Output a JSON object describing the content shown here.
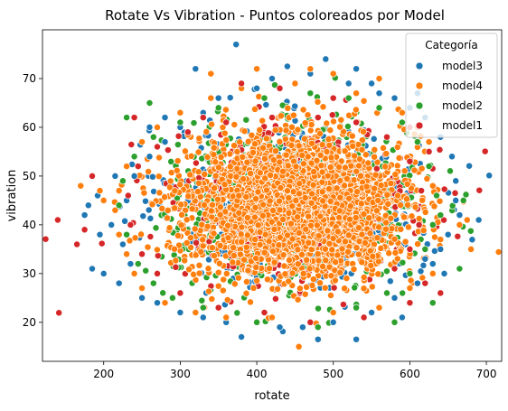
{
  "chart_data": {
    "type": "scatter",
    "title": "Rotate Vs Vibration - Puntos coloreados por Model",
    "xlabel": "rotate",
    "ylabel": "vibration",
    "xlim": [
      120,
      720
    ],
    "ylim": [
      12,
      80
    ],
    "xticks": [
      200,
      300,
      400,
      500,
      600,
      700
    ],
    "yticks": [
      20,
      30,
      40,
      50,
      60,
      70
    ],
    "grid": false,
    "legend": {
      "title": "Categoría",
      "placement": "top-right",
      "entries": [
        "model3",
        "model4",
        "model2",
        "model1"
      ]
    },
    "distribution": {
      "rotate_center": 450,
      "rotate_std": 75,
      "vibration_center": 44,
      "vibration_std": 7.5
    },
    "series": [
      {
        "name": "model3",
        "color": "#1f77b4",
        "points": [
          [
            373,
            77
          ],
          [
            490,
            74
          ],
          [
            440,
            72.5
          ],
          [
            530,
            72
          ],
          [
            320,
            72
          ],
          [
            610,
            67
          ],
          [
            550,
            69
          ],
          [
            380,
            17
          ],
          [
            480,
            16.5
          ],
          [
            530,
            16.5
          ],
          [
            590,
            21
          ],
          [
            660,
            45
          ],
          [
            690,
            41
          ],
          [
            640,
            35
          ],
          [
            660,
            49
          ],
          [
            620,
            33
          ],
          [
            645,
            30
          ],
          [
            200,
            30
          ],
          [
            185,
            31
          ],
          [
            210,
            40
          ],
          [
            175,
            42
          ],
          [
            180,
            44
          ],
          [
            220,
            28
          ],
          [
            250,
            25
          ],
          [
            270,
            24
          ],
          [
            300,
            22
          ],
          [
            330,
            21
          ],
          [
            360,
            20
          ],
          [
            430,
            19
          ],
          [
            460,
            19
          ],
          [
            500,
            20
          ],
          [
            550,
            22
          ],
          [
            580,
            25
          ],
          [
            610,
            28
          ],
          [
            630,
            32
          ],
          [
            650,
            38
          ],
          [
            665,
            42
          ],
          [
            655,
            54
          ],
          [
            640,
            58
          ],
          [
            620,
            62
          ],
          [
            600,
            64
          ],
          [
            580,
            66
          ],
          [
            560,
            67
          ],
          [
            520,
            69
          ],
          [
            470,
            71
          ],
          [
            420,
            70
          ],
          [
            400,
            68
          ],
          [
            350,
            66
          ],
          [
            330,
            63
          ],
          [
            300,
            60
          ],
          [
            280,
            57
          ],
          [
            260,
            54
          ],
          [
            240,
            50
          ],
          [
            230,
            45
          ],
          [
            225,
            36
          ],
          [
            235,
            32
          ],
          [
            195,
            38
          ],
          [
            192,
            46
          ],
          [
            215,
            50
          ],
          [
            260,
            60
          ],
          [
            280,
            62
          ]
        ]
      },
      {
        "name": "model4",
        "color": "#ff7f0e",
        "points": [
          [
            455,
            15
          ],
          [
            400,
            72
          ],
          [
            470,
            72
          ],
          [
            340,
            71
          ],
          [
            500,
            71
          ],
          [
            560,
            70
          ],
          [
            630,
            48
          ],
          [
            665,
            40
          ],
          [
            680,
            35
          ],
          [
            640,
            37
          ],
          [
            200,
            45
          ],
          [
            170,
            48
          ],
          [
            195,
            47
          ],
          [
            250,
            27
          ],
          [
            280,
            24
          ],
          [
            320,
            22
          ],
          [
            360,
            21
          ],
          [
            420,
            21
          ],
          [
            500,
            22
          ],
          [
            560,
            23
          ],
          [
            600,
            27
          ],
          [
            630,
            30
          ],
          [
            625,
            57
          ],
          [
            610,
            60
          ],
          [
            590,
            63
          ],
          [
            530,
            67
          ],
          [
            450,
            69
          ],
          [
            380,
            68
          ],
          [
            340,
            66
          ],
          [
            300,
            63
          ],
          [
            270,
            60
          ],
          [
            250,
            57
          ],
          [
            230,
            52
          ],
          [
            220,
            47
          ],
          [
            215,
            43
          ],
          [
            220,
            38
          ],
          [
            230,
            34
          ],
          [
            240,
            30
          ]
        ]
      },
      {
        "name": "model2",
        "color": "#2ca02c",
        "points": [
          [
            260,
            65
          ],
          [
            230,
            62
          ],
          [
            580,
            20
          ],
          [
            630,
            24
          ],
          [
            665,
            31
          ],
          [
            670,
            45
          ],
          [
            640,
            42
          ],
          [
            480,
            19
          ],
          [
            400,
            20
          ],
          [
            330,
            23
          ],
          [
            290,
            25
          ],
          [
            265,
            28
          ],
          [
            245,
            32
          ],
          [
            230,
            38
          ],
          [
            220,
            44
          ],
          [
            225,
            49
          ],
          [
            240,
            54
          ],
          [
            265,
            58
          ],
          [
            300,
            61
          ],
          [
            350,
            64
          ],
          [
            410,
            66
          ],
          [
            470,
            67
          ],
          [
            520,
            66
          ],
          [
            560,
            64
          ],
          [
            590,
            61
          ],
          [
            610,
            57
          ],
          [
            625,
            52
          ],
          [
            635,
            46
          ],
          [
            630,
            40
          ],
          [
            620,
            35
          ],
          [
            600,
            30
          ],
          [
            570,
            26
          ],
          [
            530,
            23
          ]
        ]
      },
      {
        "name": "model1",
        "color": "#d62728",
        "points": [
          [
            140,
            41
          ],
          [
            165,
            36
          ],
          [
            175,
            39
          ],
          [
            185,
            50
          ],
          [
            240,
            62
          ],
          [
            330,
            62
          ],
          [
            380,
            69
          ],
          [
            430,
            68
          ],
          [
            500,
            66
          ],
          [
            600,
            60
          ],
          [
            625,
            55
          ],
          [
            640,
            26
          ],
          [
            620,
            28
          ],
          [
            600,
            24
          ],
          [
            540,
            21
          ],
          [
            470,
            20
          ],
          [
            410,
            22
          ],
          [
            350,
            23
          ],
          [
            300,
            26
          ],
          [
            270,
            30
          ],
          [
            250,
            34
          ],
          [
            235,
            40
          ],
          [
            232,
            46
          ],
          [
            245,
            52
          ],
          [
            270,
            56
          ],
          [
            310,
            59
          ],
          [
            360,
            61
          ],
          [
            420,
            62
          ],
          [
            480,
            62
          ],
          [
            530,
            61
          ],
          [
            570,
            58
          ],
          [
            600,
            53
          ],
          [
            615,
            47
          ],
          [
            612,
            40
          ],
          [
            600,
            35
          ],
          [
            580,
            31
          ]
        ]
      }
    ]
  }
}
